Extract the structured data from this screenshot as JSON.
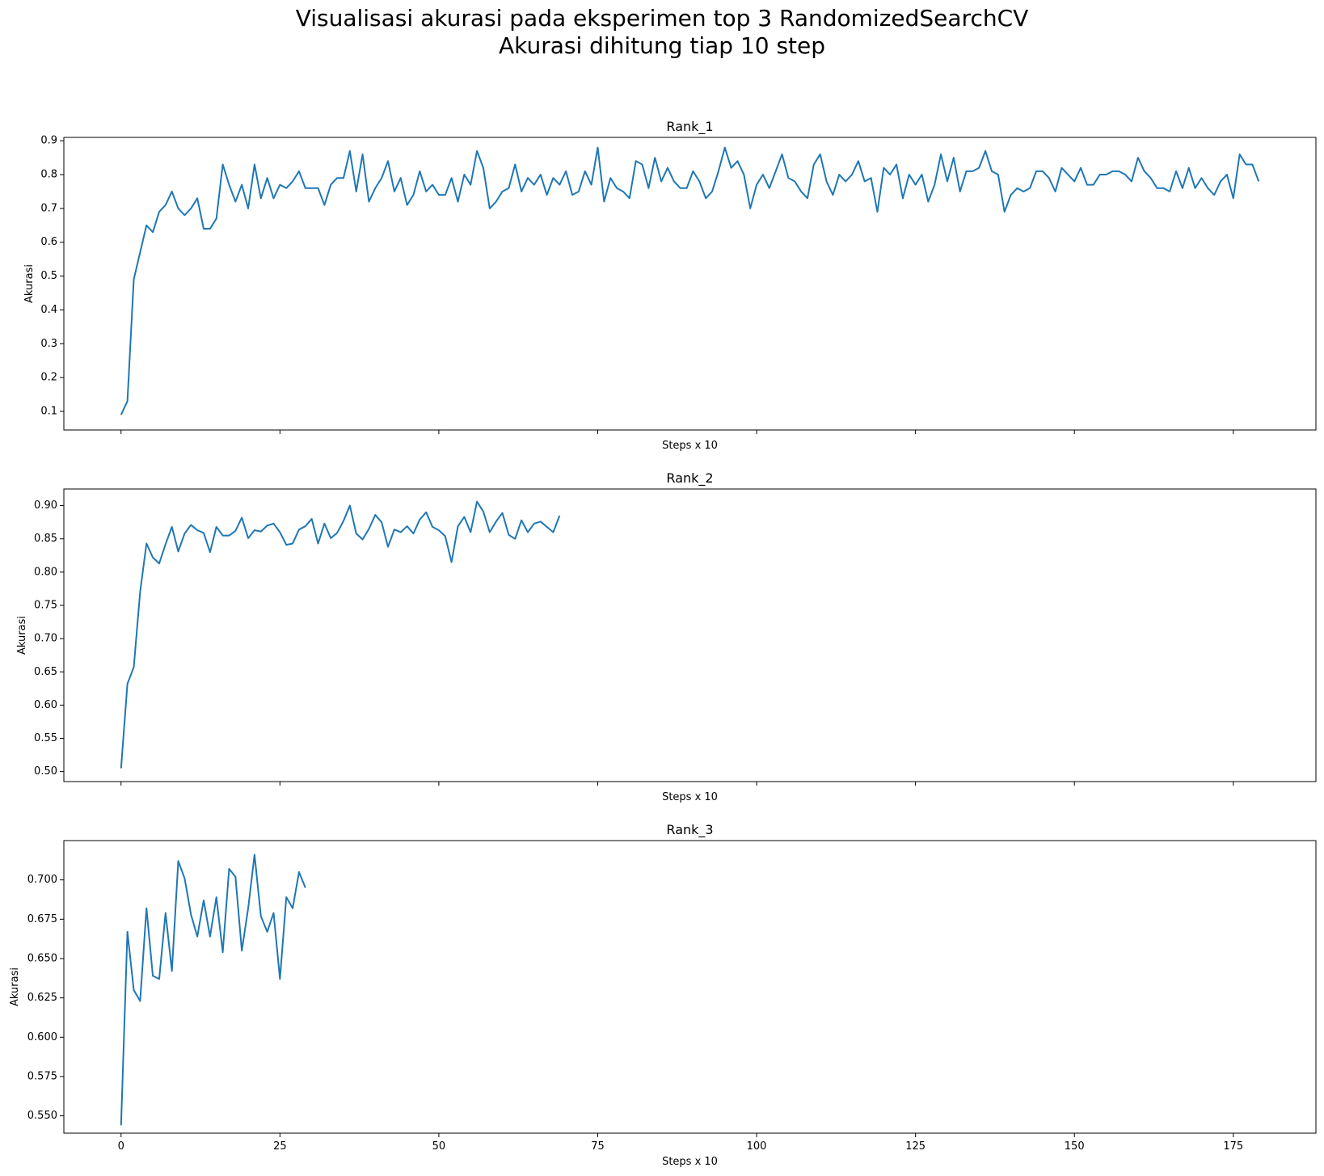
{
  "figure": {
    "title_line1": "Visualisasi akurasi pada eksperimen top 3 RandomizedSearchCV",
    "title_line2": "Akurasi dihitung tiap 10 step"
  },
  "colors": {
    "line": "#1f77b4",
    "axes": "#000000"
  },
  "chart_data": [
    {
      "type": "line",
      "title": "Rank_1",
      "xlabel": "Steps x 10",
      "ylabel": "Akurasi",
      "xlim": [
        -9,
        188
      ],
      "ylim": [
        0.045,
        0.91
      ],
      "xticks": [
        0,
        25,
        50,
        75,
        100,
        125,
        150,
        175
      ],
      "xticklabels_shown": false,
      "yticks": [
        0.1,
        0.2,
        0.3,
        0.4,
        0.5,
        0.6,
        0.7,
        0.8,
        0.9
      ],
      "yticklabels": [
        "0.1",
        "0.2",
        "0.3",
        "0.4",
        "0.5",
        "0.6",
        "0.7",
        "0.8",
        "0.9"
      ],
      "grid": false,
      "series": [
        {
          "values": [
            0.09,
            0.13,
            0.49,
            0.57,
            0.65,
            0.63,
            0.69,
            0.71,
            0.75,
            0.7,
            0.68,
            0.7,
            0.73,
            0.64,
            0.64,
            0.67,
            0.83,
            0.77,
            0.72,
            0.77,
            0.7,
            0.83,
            0.73,
            0.79,
            0.73,
            0.77,
            0.76,
            0.78,
            0.81,
            0.76,
            0.76,
            0.76,
            0.71,
            0.77,
            0.79,
            0.79,
            0.87,
            0.75,
            0.86,
            0.72,
            0.76,
            0.79,
            0.84,
            0.75,
            0.79,
            0.71,
            0.74,
            0.81,
            0.75,
            0.77,
            0.74,
            0.74,
            0.79,
            0.72,
            0.8,
            0.77,
            0.87,
            0.82,
            0.7,
            0.72,
            0.75,
            0.76,
            0.83,
            0.75,
            0.79,
            0.77,
            0.8,
            0.74,
            0.79,
            0.77,
            0.81,
            0.74,
            0.75,
            0.81,
            0.77,
            0.88,
            0.72,
            0.79,
            0.76,
            0.75,
            0.73,
            0.84,
            0.83,
            0.76,
            0.85,
            0.78,
            0.82,
            0.78,
            0.76,
            0.76,
            0.81,
            0.78,
            0.73,
            0.75,
            0.81,
            0.88,
            0.82,
            0.84,
            0.8,
            0.7,
            0.77,
            0.8,
            0.76,
            0.81,
            0.86,
            0.79,
            0.78,
            0.75,
            0.73,
            0.83,
            0.86,
            0.78,
            0.74,
            0.8,
            0.78,
            0.8,
            0.84,
            0.78,
            0.79,
            0.69,
            0.82,
            0.8,
            0.83,
            0.73,
            0.8,
            0.77,
            0.8,
            0.72,
            0.77,
            0.86,
            0.78,
            0.85,
            0.75,
            0.81,
            0.81,
            0.82,
            0.87,
            0.81,
            0.8,
            0.69,
            0.74,
            0.76,
            0.75,
            0.76,
            0.81,
            0.81,
            0.79,
            0.75,
            0.82,
            0.8,
            0.78,
            0.82,
            0.77,
            0.77,
            0.8,
            0.8,
            0.81,
            0.81,
            0.8,
            0.78,
            0.85,
            0.81,
            0.79,
            0.76,
            0.76,
            0.75,
            0.81,
            0.76,
            0.82,
            0.76,
            0.79,
            0.76,
            0.74,
            0.78,
            0.8,
            0.73,
            0.86,
            0.83,
            0.83,
            0.78
          ]
        }
      ]
    },
    {
      "type": "line",
      "title": "Rank_2",
      "xlabel": "Steps x 10",
      "ylabel": "Akurasi",
      "xlim": [
        -9,
        188
      ],
      "ylim": [
        0.485,
        0.925
      ],
      "xticks": [
        0,
        25,
        50,
        75,
        100,
        125,
        150,
        175
      ],
      "xticklabels_shown": false,
      "yticks": [
        0.5,
        0.55,
        0.6,
        0.65,
        0.7,
        0.75,
        0.8,
        0.85,
        0.9
      ],
      "yticklabels": [
        "0.50",
        "0.55",
        "0.60",
        "0.65",
        "0.70",
        "0.75",
        "0.80",
        "0.85",
        "0.90"
      ],
      "grid": false,
      "series": [
        {
          "values": [
            0.505,
            0.632,
            0.657,
            0.77,
            0.843,
            0.822,
            0.813,
            0.842,
            0.868,
            0.831,
            0.858,
            0.871,
            0.863,
            0.859,
            0.83,
            0.868,
            0.855,
            0.855,
            0.862,
            0.882,
            0.851,
            0.863,
            0.861,
            0.87,
            0.873,
            0.86,
            0.841,
            0.843,
            0.864,
            0.869,
            0.88,
            0.843,
            0.873,
            0.851,
            0.859,
            0.877,
            0.9,
            0.858,
            0.849,
            0.865,
            0.886,
            0.875,
            0.838,
            0.864,
            0.86,
            0.869,
            0.858,
            0.879,
            0.89,
            0.868,
            0.863,
            0.854,
            0.815,
            0.869,
            0.883,
            0.86,
            0.906,
            0.891,
            0.86,
            0.876,
            0.889,
            0.856,
            0.85,
            0.878,
            0.86,
            0.873,
            0.876,
            0.868,
            0.86,
            0.885
          ]
        }
      ]
    },
    {
      "type": "line",
      "title": "Rank_3",
      "xlabel": "Steps x 10",
      "ylabel": "Akurasi",
      "xlim": [
        -9,
        188
      ],
      "ylim": [
        0.539,
        0.725
      ],
      "xticks": [
        0,
        25,
        50,
        75,
        100,
        125,
        150,
        175
      ],
      "xticklabels": [
        "0",
        "25",
        "50",
        "75",
        "100",
        "125",
        "150",
        "175"
      ],
      "xticklabels_shown": true,
      "yticks": [
        0.55,
        0.575,
        0.6,
        0.625,
        0.65,
        0.675,
        0.7
      ],
      "yticklabels": [
        "0.550",
        "0.575",
        "0.600",
        "0.625",
        "0.650",
        "0.675",
        "0.700"
      ],
      "grid": false,
      "series": [
        {
          "values": [
            0.544,
            0.667,
            0.63,
            0.623,
            0.682,
            0.639,
            0.637,
            0.679,
            0.642,
            0.712,
            0.701,
            0.678,
            0.664,
            0.687,
            0.664,
            0.689,
            0.654,
            0.707,
            0.702,
            0.655,
            0.682,
            0.716,
            0.677,
            0.667,
            0.679,
            0.637,
            0.689,
            0.682,
            0.705,
            0.695
          ]
        }
      ]
    }
  ]
}
